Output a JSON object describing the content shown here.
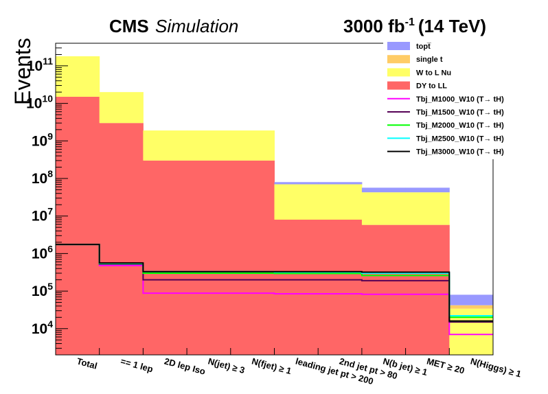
{
  "chart_data": {
    "type": "bar",
    "stacked": true,
    "title_main": "CMS",
    "title_sub": "Simulation",
    "lumi_value": "3000 fb",
    "lumi_exp": "-1",
    "lumi_energy": "(14 TeV)",
    "ylabel": "Events",
    "yscale": "log",
    "ylim": [
      2000,
      400000000000
    ],
    "categories": [
      "Total",
      "== 1 lep",
      "2D lep Iso",
      "N(jet) ≥ 3",
      "N(fjet) ≥ 1",
      "leading jet pt > 200",
      "2nd jet pt > 80",
      "N(b jet) ≥ 1",
      "MET ≥ 20",
      "N(Higgs) ≥ 1"
    ],
    "y_tick_labels": [
      {
        "base": "10",
        "exp": "4",
        "value": 10000
      },
      {
        "base": "10",
        "exp": "5",
        "value": 100000
      },
      {
        "base": "10",
        "exp": "6",
        "value": 1000000
      },
      {
        "base": "10",
        "exp": "7",
        "value": 10000000
      },
      {
        "base": "10",
        "exp": "8",
        "value": 100000000
      },
      {
        "base": "10",
        "exp": "9",
        "value": 1000000000
      },
      {
        "base": "10",
        "exp": "10",
        "value": 10000000000
      },
      {
        "base": "10",
        "exp": "11",
        "value": 100000000000
      }
    ],
    "stack_series": [
      {
        "key": "DY",
        "name": "DY to LL",
        "color": "#ff6666",
        "values": [
          15000000000,
          3000000000,
          300000000,
          300000000,
          300000000,
          8000000,
          8000000,
          5800000,
          5800000,
          2000
        ]
      },
      {
        "key": "W",
        "name": "W to L Nu",
        "color": "#ffff66",
        "values": [
          165000000000,
          17000000000,
          1600000000,
          1600000000,
          1600000000,
          62000000,
          62000000,
          37000000,
          37000000,
          32000
        ]
      },
      {
        "key": "single",
        "name": "single t",
        "color": "#ffcc66",
        "values": [
          0,
          0,
          0,
          0,
          0,
          0,
          0,
          0,
          0,
          8000
        ]
      },
      {
        "key": "top",
        "name": "topt̅",
        "color": "#9999ff",
        "values": [
          0,
          0,
          0,
          0,
          0,
          10000000,
          10000000,
          14000000,
          14000000,
          38000
        ]
      }
    ],
    "stack_order_legend": [
      "top",
      "single",
      "W",
      "DY"
    ],
    "line_series": [
      {
        "name": "Tbj_M1000_W10 (T→ tH)",
        "color": "#ff00ff",
        "values": [
          1750000,
          480000,
          88000,
          88000,
          88000,
          85000,
          85000,
          82000,
          82000,
          7000
        ]
      },
      {
        "name": "Tbj_M1500_W10 (T→ tH)",
        "color": "#550055",
        "values": [
          1750000,
          520000,
          200000,
          200000,
          200000,
          200000,
          200000,
          190000,
          190000,
          15000
        ]
      },
      {
        "name": "Tbj_M2000_W10 (T→ tH)",
        "color": "#00ff00",
        "values": [
          1750000,
          540000,
          300000,
          300000,
          300000,
          295000,
          295000,
          260000,
          260000,
          20000
        ]
      },
      {
        "name": "Tbj_M2500_W10 (T→ tH)",
        "color": "#00ffff",
        "values": [
          1750000,
          550000,
          330000,
          330000,
          330000,
          320000,
          320000,
          300000,
          300000,
          22000
        ]
      },
      {
        "name": "Tbj_M3000_W10 (T→ tH)",
        "color": "#000000",
        "values": [
          1750000,
          560000,
          330000,
          330000,
          330000,
          330000,
          330000,
          320000,
          320000,
          16000
        ]
      }
    ],
    "legend_position": "top-right",
    "grid": false
  }
}
